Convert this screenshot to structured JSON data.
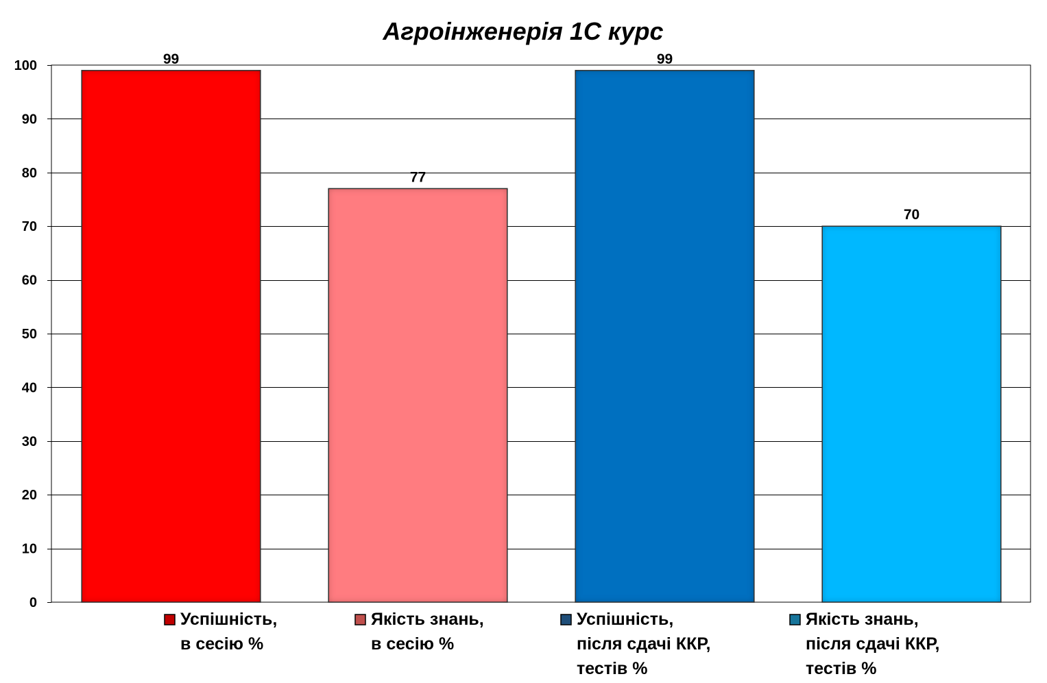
{
  "chart_data": {
    "type": "bar",
    "title": "Агроінженерія 1С курс",
    "xlabel": "",
    "ylabel": "",
    "ylim": [
      0,
      100
    ],
    "yticks": [
      0,
      10,
      20,
      30,
      40,
      50,
      60,
      70,
      80,
      90,
      100
    ],
    "grid": true,
    "legend_position": "bottom",
    "series": [
      {
        "name": "Успішність, в сесію %",
        "legend_lines": [
          "Успішність,",
          "в сесію %"
        ],
        "value": 99,
        "color": "#ff0000",
        "legend_color": "#c00000"
      },
      {
        "name": "Якість знань, в сесію %",
        "legend_lines": [
          "Якість знань,",
          "в сесію %"
        ],
        "value": 77,
        "color": "#ff7c80",
        "legend_color": "#c0504d"
      },
      {
        "name": "Успішність, після сдачі ККР, тестів %",
        "legend_lines": [
          "Успішність,",
          "після сдачі ККР,",
          "тестів %"
        ],
        "value": 99,
        "color": "#0070c0",
        "legend_color": "#1f4e79"
      },
      {
        "name": "Якість знань, після сдачі ККР, тестів %",
        "legend_lines": [
          "Якість знань,",
          "після сдачі ККР,",
          "тестів %"
        ],
        "value": 70,
        "color": "#00b8ff",
        "legend_color": "#17759b"
      }
    ]
  }
}
